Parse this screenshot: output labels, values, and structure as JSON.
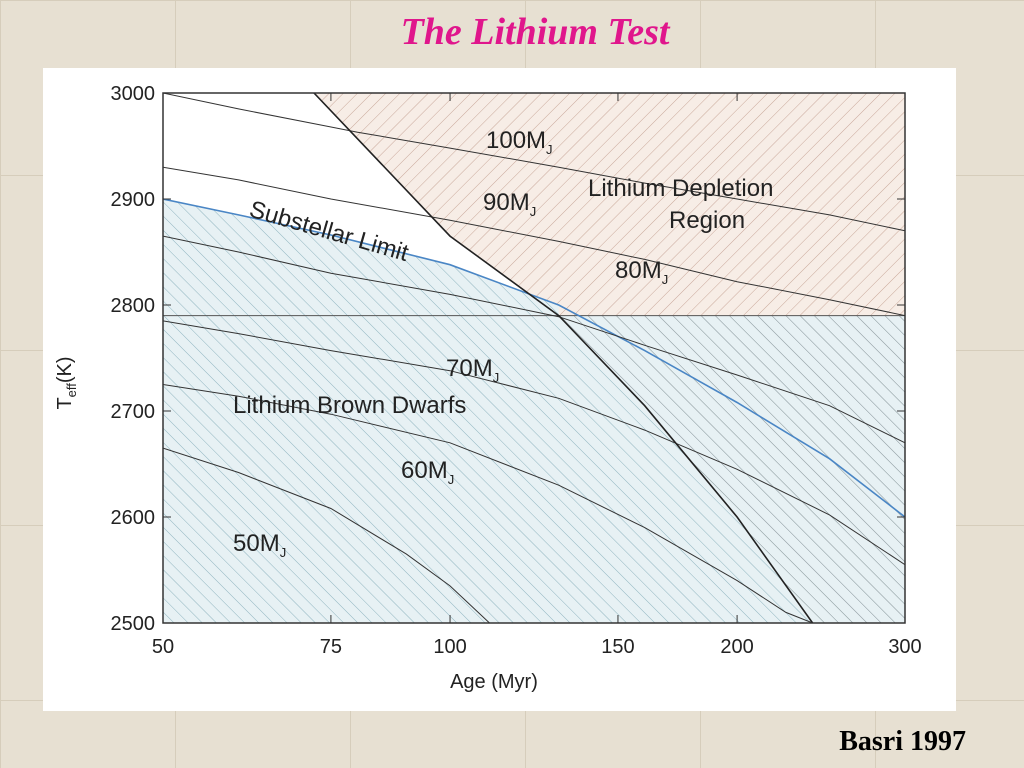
{
  "slide": {
    "title": "The Lithium Test",
    "credit": "Basri 1997"
  },
  "chart_data": {
    "type": "line",
    "x_axis": {
      "label": "Age (Myr)",
      "scale": "log",
      "range": [
        50,
        300
      ],
      "ticks": [
        50,
        75,
        100,
        150,
        200,
        300
      ]
    },
    "y_axis": {
      "label_main": "T",
      "label_sub": "eff",
      "label_unit": "(K)",
      "range": [
        2500,
        3000
      ],
      "ticks": [
        2500,
        2600,
        2700,
        2800,
        2900,
        3000
      ]
    },
    "grid": false,
    "series": [
      {
        "name": "100MJ",
        "label_main": "100M",
        "label_sub": "J",
        "points": [
          [
            50,
            3000
          ],
          [
            60,
            2985
          ],
          [
            80,
            2963
          ],
          [
            100,
            2948
          ],
          [
            130,
            2930
          ],
          [
            160,
            2915
          ],
          [
            200,
            2900
          ],
          [
            250,
            2885
          ],
          [
            300,
            2870
          ]
        ]
      },
      {
        "name": "90MJ",
        "label_main": "90M",
        "label_sub": "J",
        "points": [
          [
            50,
            2930
          ],
          [
            60,
            2918
          ],
          [
            75,
            2900
          ],
          [
            100,
            2880
          ],
          [
            130,
            2860
          ],
          [
            160,
            2843
          ],
          [
            200,
            2822
          ],
          [
            250,
            2805
          ],
          [
            300,
            2790
          ]
        ]
      },
      {
        "name": "Substellar Limit",
        "label_main": "Substellar Limit",
        "label_sub": "",
        "color": "#4a86c5",
        "points": [
          [
            50,
            2900
          ],
          [
            60,
            2885
          ],
          [
            75,
            2866
          ],
          [
            100,
            2838
          ],
          [
            130,
            2800
          ],
          [
            160,
            2757
          ],
          [
            200,
            2708
          ],
          [
            250,
            2655
          ],
          [
            300,
            2600
          ]
        ]
      },
      {
        "name": "80MJ",
        "label_main": "80M",
        "label_sub": "J",
        "points": [
          [
            50,
            2865
          ],
          [
            60,
            2850
          ],
          [
            75,
            2830
          ],
          [
            100,
            2810
          ],
          [
            130,
            2789
          ],
          [
            160,
            2762
          ],
          [
            200,
            2734
          ],
          [
            250,
            2705
          ],
          [
            300,
            2670
          ]
        ]
      },
      {
        "name": "70MJ",
        "label_main": "70M",
        "label_sub": "J",
        "points": [
          [
            50,
            2785
          ],
          [
            60,
            2773
          ],
          [
            75,
            2757
          ],
          [
            100,
            2738
          ],
          [
            130,
            2712
          ],
          [
            160,
            2682
          ],
          [
            200,
            2645
          ],
          [
            250,
            2602
          ],
          [
            300,
            2555
          ]
        ]
      },
      {
        "name": "60MJ",
        "label_main": "60M",
        "label_sub": "J",
        "points": [
          [
            50,
            2725
          ],
          [
            60,
            2714
          ],
          [
            75,
            2697
          ],
          [
            100,
            2670
          ],
          [
            130,
            2630
          ],
          [
            160,
            2590
          ],
          [
            200,
            2540
          ],
          [
            225,
            2510
          ],
          [
            240,
            2500
          ]
        ]
      },
      {
        "name": "50MJ",
        "label_main": "50M",
        "label_sub": "J",
        "points": [
          [
            50,
            2665
          ],
          [
            60,
            2642
          ],
          [
            75,
            2608
          ],
          [
            90,
            2565
          ],
          [
            100,
            2535
          ],
          [
            110,
            2500
          ]
        ]
      }
    ],
    "boundaries": {
      "depletion_line": [
        [
          72,
          3000
        ],
        [
          100,
          2865
        ],
        [
          130,
          2790
        ],
        [
          160,
          2705
        ],
        [
          200,
          2600
        ],
        [
          240,
          2500
        ]
      ],
      "reference_temperature": 2790
    },
    "regions": [
      {
        "name": "Lithium Depletion Region",
        "line1": "Lithium Depletion",
        "line2": "Region",
        "hatch": "diagonal",
        "color": "#f3e9e2"
      },
      {
        "name": "Lithium Brown Dwarfs",
        "line1": "Lithium Brown Dwarfs",
        "hatch": "diagonal",
        "color": "#e6f0f3"
      }
    ],
    "annotations": {
      "substellar_label": "Substellar Limit",
      "region_depletion_line1": "Lithium Depletion",
      "region_depletion_line2": "Region",
      "region_brown": "Lithium Brown Dwarfs"
    }
  }
}
